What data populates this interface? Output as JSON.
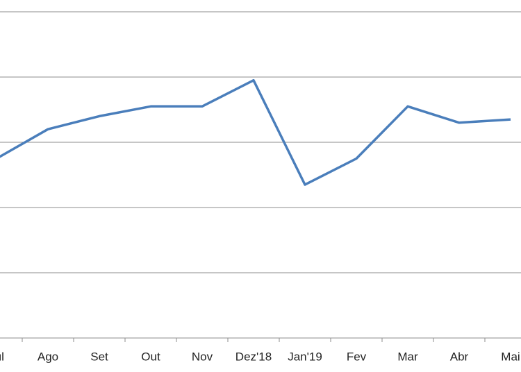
{
  "chart_data": {
    "type": "line",
    "categories": [
      "Jul",
      "Ago",
      "Set",
      "Out",
      "Nov",
      "Dez'18",
      "Jan'19",
      "Fev",
      "Mar",
      "Abr",
      "Mai"
    ],
    "series": [
      {
        "color": "#4a7ebb",
        "values": [
          2.75,
          3.2,
          3.4,
          3.55,
          3.55,
          3.95,
          2.35,
          2.75,
          3.55,
          3.3,
          3.35
        ]
      }
    ],
    "ylim": [
      0,
      5
    ],
    "yticks": [
      0,
      1,
      2,
      3,
      4,
      5
    ],
    "grid": true
  }
}
